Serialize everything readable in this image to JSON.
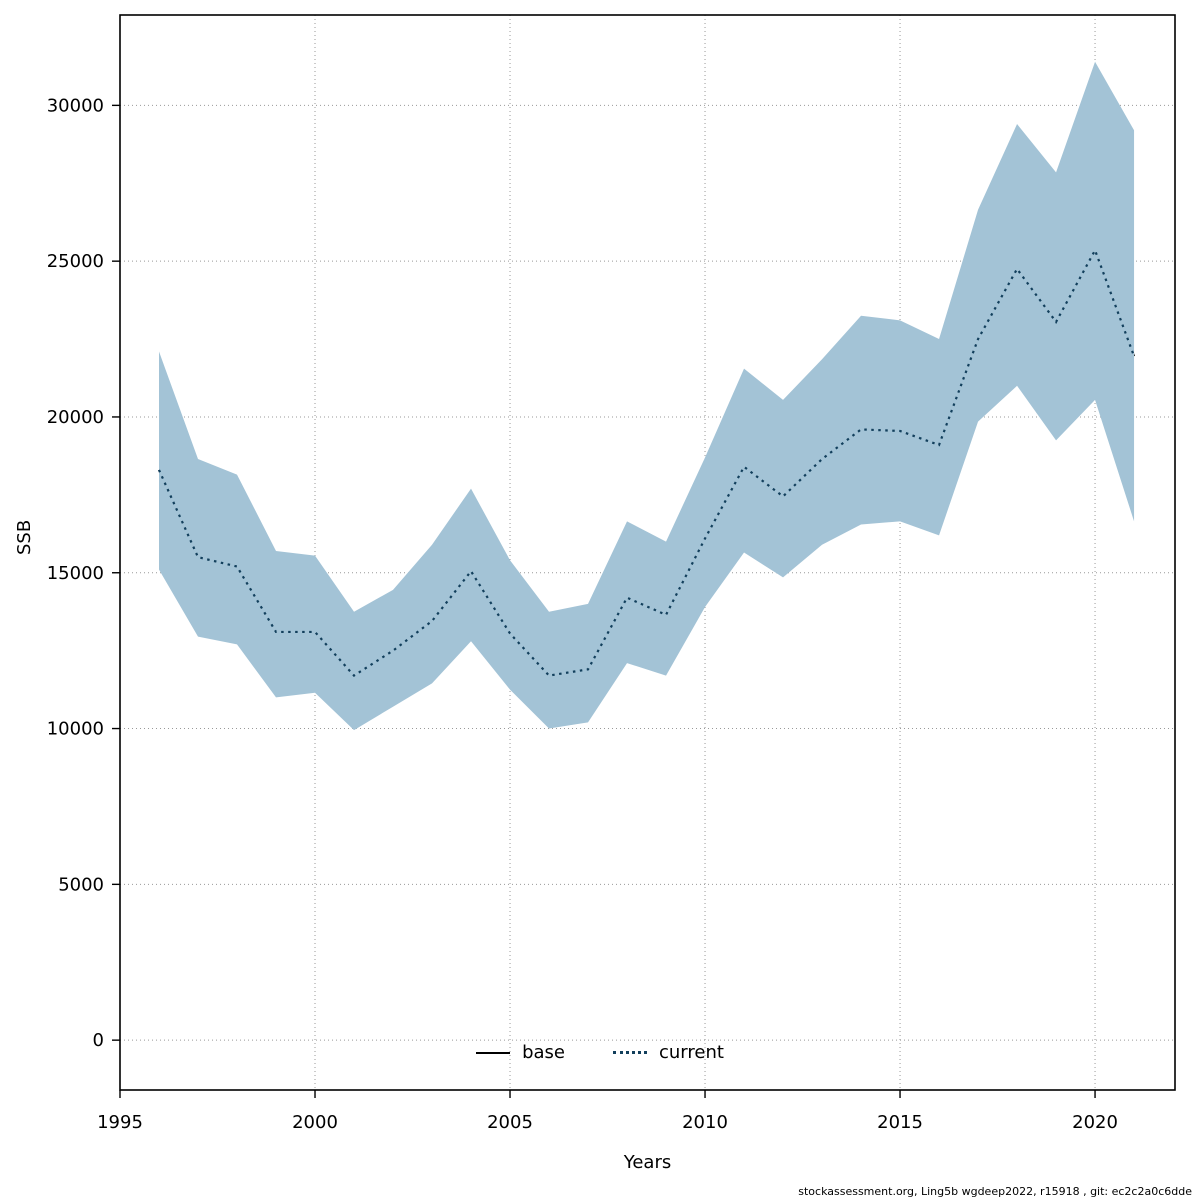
{
  "footer": "stockassessment.org, Ling5b wgdeep2022, r15918 , git: ec2c2a0c6dde",
  "chart_data": {
    "type": "line",
    "title": "",
    "xlabel": "Years",
    "ylabel": "SSB",
    "x": [
      1996,
      1997,
      1998,
      1999,
      2000,
      2001,
      2002,
      2003,
      2004,
      2005,
      2006,
      2007,
      2008,
      2009,
      2010,
      2011,
      2012,
      2013,
      2014,
      2015,
      2016,
      2017,
      2018,
      2019,
      2020,
      2021
    ],
    "series": [
      {
        "name": "base",
        "style": "solid",
        "color": "#000000",
        "values": [
          18300,
          15500,
          15200,
          13100,
          13100,
          11700,
          12500,
          13450,
          15050,
          13050,
          11700,
          11900,
          14200,
          13650,
          16100,
          18400,
          17450,
          18650,
          19600,
          19550,
          19100,
          22500,
          24750,
          23050,
          25350,
          21950
        ]
      },
      {
        "name": "current",
        "style": "dotted",
        "color": "#123f5c",
        "values": [
          18300,
          15500,
          15200,
          13100,
          13100,
          11700,
          12500,
          13450,
          15050,
          13050,
          11700,
          11900,
          14200,
          13650,
          16100,
          18400,
          17450,
          18650,
          19600,
          19550,
          19100,
          22500,
          24750,
          23050,
          25350,
          21950
        ]
      }
    ],
    "band": {
      "color": "#a3c3d6",
      "upper": [
        22100,
        18650,
        18150,
        15700,
        15550,
        13750,
        14450,
        15900,
        17700,
        15400,
        13750,
        14000,
        16650,
        16000,
        18700,
        21550,
        20550,
        21850,
        23250,
        23100,
        22500,
        26650,
        29400,
        27850,
        31400,
        29200
      ],
      "lower": [
        15100,
        12950,
        12700,
        11000,
        11150,
        9950,
        10700,
        11450,
        12800,
        11250,
        10000,
        10200,
        12100,
        11700,
        13900,
        15650,
        14850,
        15900,
        16550,
        16650,
        16200,
        19850,
        21000,
        19250,
        20550,
        16650
      ]
    },
    "xlim": [
      1995,
      2022.05
    ],
    "ylim": [
      -1600,
      32900
    ],
    "xticks": [
      1995,
      2000,
      2005,
      2010,
      2015,
      2020
    ],
    "yticks": [
      0,
      5000,
      10000,
      15000,
      20000,
      25000,
      30000
    ],
    "grid": true,
    "legend_position": "bottom-center-inside"
  }
}
